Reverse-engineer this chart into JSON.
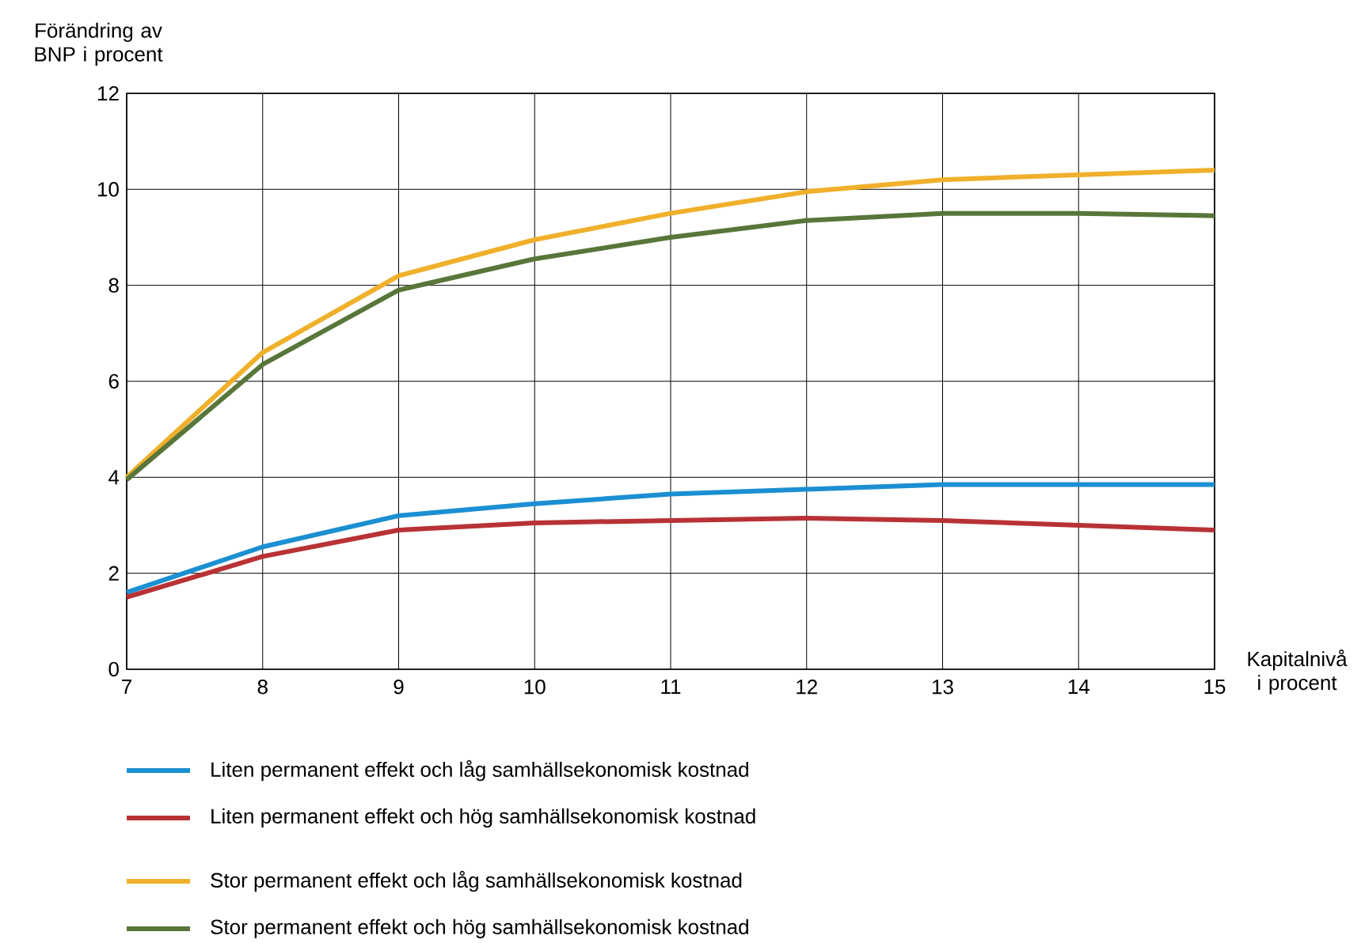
{
  "chart_data": {
    "type": "line",
    "xlabel": "Kapitalnivå i procent",
    "ylabel": "Förändring av BNP i procent",
    "x": [
      7,
      8,
      9,
      10,
      11,
      12,
      13,
      14,
      15
    ],
    "series": [
      {
        "name": "Liten permanent effekt och låg samhällsekonomisk kostnad",
        "color": "#1b8fd2",
        "values": [
          1.6,
          2.55,
          3.2,
          3.45,
          3.65,
          3.75,
          3.85,
          3.85,
          3.85
        ]
      },
      {
        "name": "Liten permanent effekt och hög samhällsekonomisk kostnad",
        "color": "#b83235",
        "values": [
          1.5,
          2.35,
          2.9,
          3.05,
          3.1,
          3.15,
          3.1,
          3.0,
          2.9
        ]
      },
      {
        "name": "Stor permanent effekt och låg samhällsekonomisk kostnad",
        "color": "#f0b02c",
        "values": [
          4.0,
          6.6,
          8.2,
          8.95,
          9.5,
          9.95,
          10.2,
          10.3,
          10.4
        ]
      },
      {
        "name": "Stor permanent effekt och hög samhällsekonomisk kostnad",
        "color": "#58763a",
        "values": [
          3.95,
          6.35,
          7.9,
          8.55,
          9.0,
          9.35,
          9.5,
          9.5,
          9.45
        ]
      }
    ],
    "xlim": [
      7,
      15
    ],
    "ylim": [
      0,
      12
    ],
    "xticks": [
      7,
      8,
      9,
      10,
      11,
      12,
      13,
      14,
      15
    ],
    "yticks": [
      0,
      2,
      4,
      6,
      8,
      10,
      12
    ],
    "grid": true,
    "legend": "bottom",
    "marker": "none",
    "line_style": "solid"
  }
}
